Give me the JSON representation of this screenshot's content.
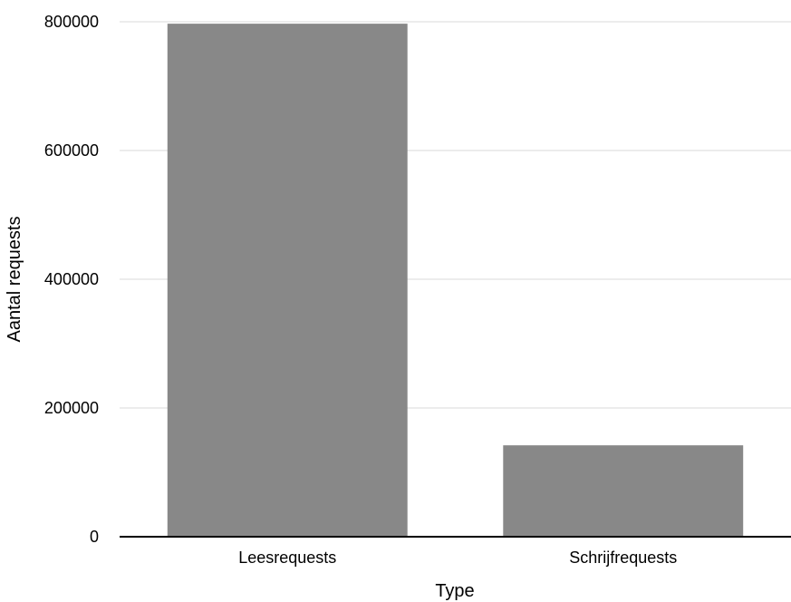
{
  "chart_data": {
    "type": "bar",
    "categories": [
      "Leesrequests",
      "Schrijfrequests"
    ],
    "values": [
      797000,
      142000
    ],
    "title": "",
    "xlabel": "Type",
    "ylabel": "Aantal requests",
    "ylim": [
      0,
      800000
    ],
    "yticks": [
      "0",
      "200000",
      "400000",
      "600000",
      "800000"
    ],
    "grid": true,
    "legend": "none",
    "colors": {
      "bar": "#888888",
      "grid": "#d9d9d9",
      "axis": "#000000"
    }
  }
}
